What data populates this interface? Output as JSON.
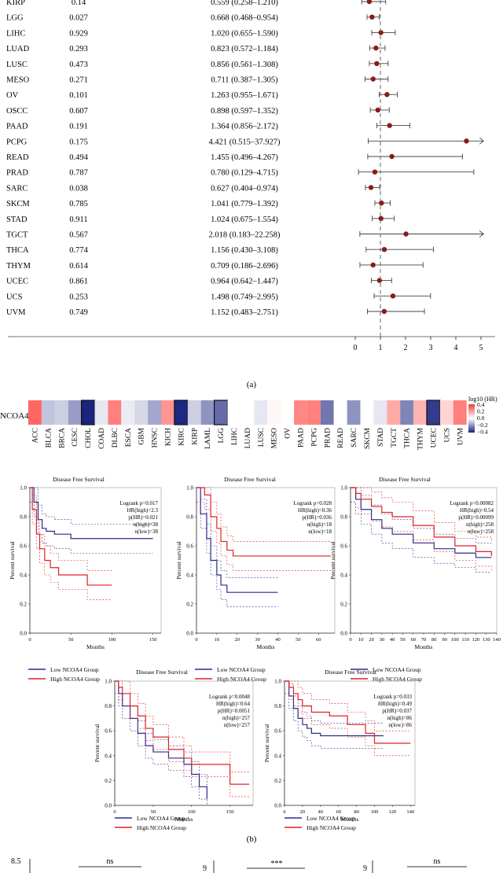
{
  "panel_labels": {
    "a": "(a)",
    "b": "(b)"
  },
  "forest": {
    "rows": [
      {
        "cancer": "KIRP",
        "p": "0.14",
        "hr_ci": "0.559 (0.258–1.210)",
        "hr": 0.559,
        "lo": 0.258,
        "hi": 1.21
      },
      {
        "cancer": "LGG",
        "p": "0.027",
        "hr_ci": "0.668 (0.468–0.954)",
        "hr": 0.668,
        "lo": 0.468,
        "hi": 0.954
      },
      {
        "cancer": "LIHC",
        "p": "0.929",
        "hr_ci": "1.020 (0.655–1.590)",
        "hr": 1.02,
        "lo": 0.655,
        "hi": 1.59
      },
      {
        "cancer": "LUAD",
        "p": "0.293",
        "hr_ci": "0.823 (0.572–1.184)",
        "hr": 0.823,
        "lo": 0.572,
        "hi": 1.184
      },
      {
        "cancer": "LUSC",
        "p": "0.473",
        "hr_ci": "0.856 (0.561–1.308)",
        "hr": 0.856,
        "lo": 0.561,
        "hi": 1.308
      },
      {
        "cancer": "MESO",
        "p": "0.271",
        "hr_ci": "0.711 (0.387–1.305)",
        "hr": 0.711,
        "lo": 0.387,
        "hi": 1.305
      },
      {
        "cancer": "OV",
        "p": "0.101",
        "hr_ci": "1.263 (0.955–1.671)",
        "hr": 1.263,
        "lo": 0.955,
        "hi": 1.671
      },
      {
        "cancer": "OSCC",
        "p": "0.607",
        "hr_ci": "0.898 (0.597–1.352)",
        "hr": 0.898,
        "lo": 0.597,
        "hi": 1.352
      },
      {
        "cancer": "PAAD",
        "p": "0.191",
        "hr_ci": "1.364 (0.856–2.172)",
        "hr": 1.364,
        "lo": 0.856,
        "hi": 2.172
      },
      {
        "cancer": "PCPG",
        "p": "0.175",
        "hr_ci": "4.421 (0.515–37.927)",
        "hr": 4.421,
        "lo": 0.515,
        "hi": 37.927
      },
      {
        "cancer": "READ",
        "p": "0.494",
        "hr_ci": "1.455 (0.496–4.267)",
        "hr": 1.455,
        "lo": 0.496,
        "hi": 4.267
      },
      {
        "cancer": "PRAD",
        "p": "0.787",
        "hr_ci": "0.780 (0.129–4.715)",
        "hr": 0.78,
        "lo": 0.129,
        "hi": 4.715
      },
      {
        "cancer": "SARC",
        "p": "0.038",
        "hr_ci": "0.627 (0.404–0.974)",
        "hr": 0.627,
        "lo": 0.404,
        "hi": 0.974
      },
      {
        "cancer": "SKCM",
        "p": "0.785",
        "hr_ci": "1.041 (0.779–1.392)",
        "hr": 1.041,
        "lo": 0.779,
        "hi": 1.392
      },
      {
        "cancer": "STAD",
        "p": "0.911",
        "hr_ci": "1.024 (0.675–1.554)",
        "hr": 1.024,
        "lo": 0.675,
        "hi": 1.554
      },
      {
        "cancer": "TGCT",
        "p": "0.567",
        "hr_ci": "2.018 (0.183–22.258)",
        "hr": 2.018,
        "lo": 0.183,
        "hi": 22.258
      },
      {
        "cancer": "THCA",
        "p": "0.774",
        "hr_ci": "1.156 (0.430–3.108)",
        "hr": 1.156,
        "lo": 0.43,
        "hi": 3.108
      },
      {
        "cancer": "THYM",
        "p": "0.614",
        "hr_ci": "0.709 (0.186–2.696)",
        "hr": 0.709,
        "lo": 0.186,
        "hi": 2.696
      },
      {
        "cancer": "UCEC",
        "p": "0.861",
        "hr_ci": "0.964 (0.642–1.447)",
        "hr": 0.964,
        "lo": 0.642,
        "hi": 1.447
      },
      {
        "cancer": "UCS",
        "p": "0.253",
        "hr_ci": "1.498 (0.749–2.995)",
        "hr": 1.498,
        "lo": 0.749,
        "hi": 2.995
      },
      {
        "cancer": "UVM",
        "p": "0.749",
        "hr_ci": "1.152 (0.483–2.751)",
        "hr": 1.152,
        "lo": 0.483,
        "hi": 2.751
      }
    ],
    "axis_ticks": [
      "0",
      "1",
      "2",
      "3",
      "4",
      "5"
    ],
    "xlim": [
      0,
      5
    ],
    "ref_line": 1
  },
  "heatmap": {
    "gene": "NCOA4",
    "legend_title": "log10 (HR)",
    "legend_ticks": [
      "0.4",
      "0.2",
      "0.0",
      "−0.2",
      "−0.4"
    ],
    "cancers": [
      "ACC",
      "BLCA",
      "BRCA",
      "CESC",
      "CHOL",
      "COAD",
      "DLBC",
      "ESCA",
      "GBM",
      "HNSC",
      "KICH",
      "KIRC",
      "KIRP",
      "LAML",
      "LGG",
      "LIHC",
      "LUAD",
      "LUSC",
      "MESO",
      "OV",
      "PAAD",
      "PCPG",
      "PRAD",
      "READ",
      "SARC",
      "SKCM",
      "STAD",
      "TGCT",
      "THCA",
      "THYM",
      "UCEC",
      "UCS",
      "UVM"
    ],
    "values": [
      0.36,
      -0.12,
      -0.1,
      -0.2,
      -0.45,
      -0.05,
      0.3,
      -0.04,
      -0.08,
      -0.18,
      0.25,
      -0.44,
      -0.1,
      -0.22,
      -0.3,
      0.0,
      0.0,
      -0.05,
      0.02,
      0.0,
      0.28,
      0.3,
      -0.28,
      0.0,
      -0.22,
      0.0,
      -0.05,
      0.2,
      -0.25,
      0.18,
      -0.4,
      0.1,
      0.3
    ],
    "boxed": [
      "CHOL",
      "KIRC",
      "LGG",
      "UCEC"
    ]
  },
  "km_common": {
    "title": "Disease Free Survival",
    "ylabel": "Percent survival",
    "xlabel": "Months",
    "yticks": [
      "0.0",
      "0.2",
      "0.4",
      "0.6",
      "0.8",
      "1.0"
    ],
    "legend_low": "Low NCOA4 Group",
    "legend_high": "High NCOA4 Group",
    "color_low": "#2b2b8c",
    "color_high": "#e02020"
  },
  "km_plots": [
    {
      "logrank": "Logrank p=0.017",
      "hr": "HR(high)=2.3",
      "phr": "p(HR)=0.021",
      "nhigh": "n(high)=38",
      "nlow": "n(low)=38",
      "xmax": 160,
      "xticks": [
        "0",
        "50",
        "100",
        "150"
      ],
      "low": [
        [
          0,
          1
        ],
        [
          5,
          0.9
        ],
        [
          10,
          0.78
        ],
        [
          15,
          0.72
        ],
        [
          20,
          0.7
        ],
        [
          30,
          0.68
        ],
        [
          50,
          0.65
        ],
        [
          100,
          0.65
        ],
        [
          150,
          0.65
        ]
      ],
      "high": [
        [
          0,
          1
        ],
        [
          3,
          0.85
        ],
        [
          8,
          0.68
        ],
        [
          12,
          0.58
        ],
        [
          18,
          0.5
        ],
        [
          25,
          0.45
        ],
        [
          35,
          0.4
        ],
        [
          60,
          0.4
        ],
        [
          70,
          0.33
        ],
        [
          100,
          0.33
        ]
      ]
    },
    {
      "logrank": "Logrank p=0.028",
      "hr": "HR(high)=0.36",
      "phr": "p(HR)=0.036",
      "nhigh": "n(high)=18",
      "nlow": "n(low)=18",
      "xmax": 68,
      "xticks": [
        "0",
        "10",
        "20",
        "30",
        "40",
        "50",
        "60"
      ],
      "low": [
        [
          0,
          1
        ],
        [
          2,
          0.82
        ],
        [
          5,
          0.65
        ],
        [
          7,
          0.5
        ],
        [
          10,
          0.4
        ],
        [
          12,
          0.33
        ],
        [
          15,
          0.28
        ],
        [
          40,
          0.28
        ]
      ],
      "high": [
        [
          0,
          1
        ],
        [
          4,
          0.95
        ],
        [
          7,
          0.8
        ],
        [
          10,
          0.72
        ],
        [
          12,
          0.63
        ],
        [
          15,
          0.57
        ],
        [
          18,
          0.53
        ],
        [
          66,
          0.53
        ]
      ]
    },
    {
      "logrank": "Logrank p=0.00082",
      "hr": "HR(high)=0.54",
      "phr": "p(HR)=0.00099",
      "nhigh": "n(high)=258",
      "nlow": "n(low)=258",
      "xmax": 140,
      "xticks": [
        "0",
        "10",
        "20",
        "30",
        "40",
        "50",
        "60",
        "70",
        "80",
        "90",
        "100",
        "110",
        "120",
        "130",
        "140"
      ],
      "low": [
        [
          0,
          1
        ],
        [
          5,
          0.92
        ],
        [
          10,
          0.85
        ],
        [
          20,
          0.78
        ],
        [
          30,
          0.72
        ],
        [
          40,
          0.68
        ],
        [
          60,
          0.62
        ],
        [
          80,
          0.58
        ],
        [
          100,
          0.55
        ],
        [
          120,
          0.52
        ],
        [
          135,
          0.52
        ]
      ],
      "high": [
        [
          0,
          1
        ],
        [
          5,
          0.96
        ],
        [
          10,
          0.92
        ],
        [
          20,
          0.87
        ],
        [
          30,
          0.83
        ],
        [
          40,
          0.8
        ],
        [
          60,
          0.74
        ],
        [
          80,
          0.66
        ],
        [
          100,
          0.6
        ],
        [
          120,
          0.56
        ],
        [
          135,
          0.53
        ]
      ]
    },
    {
      "logrank": "Logrank p=0.0048",
      "hr": "HR(high)=0.64",
      "phr": "p(HR)=0.0051",
      "nhigh": "n(high)=257",
      "nlow": "n(low)=257",
      "xmax": 180,
      "xticks": [
        "0",
        "50",
        "100",
        "150"
      ],
      "low": [
        [
          0,
          1
        ],
        [
          5,
          0.9
        ],
        [
          10,
          0.8
        ],
        [
          20,
          0.7
        ],
        [
          30,
          0.58
        ],
        [
          40,
          0.48
        ],
        [
          50,
          0.43
        ],
        [
          70,
          0.38
        ],
        [
          90,
          0.33
        ],
        [
          100,
          0.25
        ],
        [
          110,
          0.15
        ],
        [
          120,
          0.05
        ]
      ],
      "high": [
        [
          0,
          1
        ],
        [
          5,
          0.95
        ],
        [
          10,
          0.9
        ],
        [
          20,
          0.8
        ],
        [
          30,
          0.72
        ],
        [
          40,
          0.62
        ],
        [
          50,
          0.55
        ],
        [
          70,
          0.45
        ],
        [
          90,
          0.38
        ],
        [
          100,
          0.33
        ],
        [
          140,
          0.33
        ],
        [
          150,
          0.17
        ],
        [
          175,
          0.17
        ]
      ]
    },
    {
      "logrank": "Logrank p=0.033",
      "hr": "HR(high)=0.49",
      "phr": "p(HR)=0.037",
      "nhigh": "n(high)=86",
      "nlow": "n(low)=86",
      "xmax": 145,
      "xticks": [
        "0",
        "20",
        "40",
        "60",
        "80",
        "100",
        "120",
        "140"
      ],
      "low": [
        [
          0,
          1
        ],
        [
          5,
          0.88
        ],
        [
          10,
          0.78
        ],
        [
          15,
          0.7
        ],
        [
          20,
          0.65
        ],
        [
          25,
          0.62
        ],
        [
          30,
          0.58
        ],
        [
          40,
          0.56
        ],
        [
          110,
          0.56
        ]
      ],
      "high": [
        [
          0,
          1
        ],
        [
          5,
          0.95
        ],
        [
          10,
          0.9
        ],
        [
          15,
          0.85
        ],
        [
          20,
          0.8
        ],
        [
          30,
          0.75
        ],
        [
          50,
          0.72
        ],
        [
          70,
          0.65
        ],
        [
          90,
          0.58
        ],
        [
          100,
          0.5
        ],
        [
          140,
          0.5
        ]
      ]
    }
  ],
  "bottom_strip": {
    "yticks": [
      "8.5",
      "9",
      "9"
    ],
    "annotations": [
      "ns",
      "***",
      "ns"
    ]
  }
}
